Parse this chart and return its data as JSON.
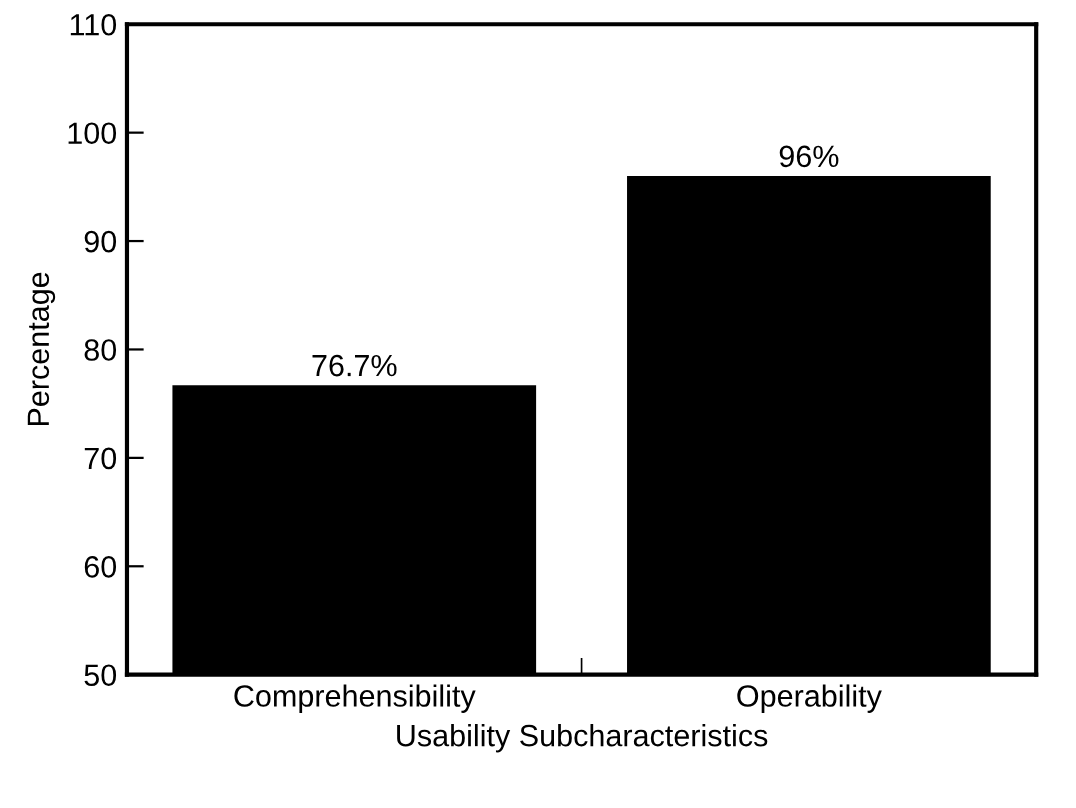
{
  "chart_data": {
    "type": "bar",
    "xlabel": "Usability Subcharacteristics",
    "ylabel": "Percentage",
    "categories": [
      "Comprehensibility",
      "Operability"
    ],
    "values": [
      76.7,
      96
    ],
    "value_labels": [
      "76.7%",
      "96%"
    ],
    "color": "#000000",
    "ylim": [
      50,
      110
    ],
    "yticks": [
      50,
      60,
      70,
      80,
      90,
      100,
      110
    ],
    "grid": false,
    "legend": false
  }
}
